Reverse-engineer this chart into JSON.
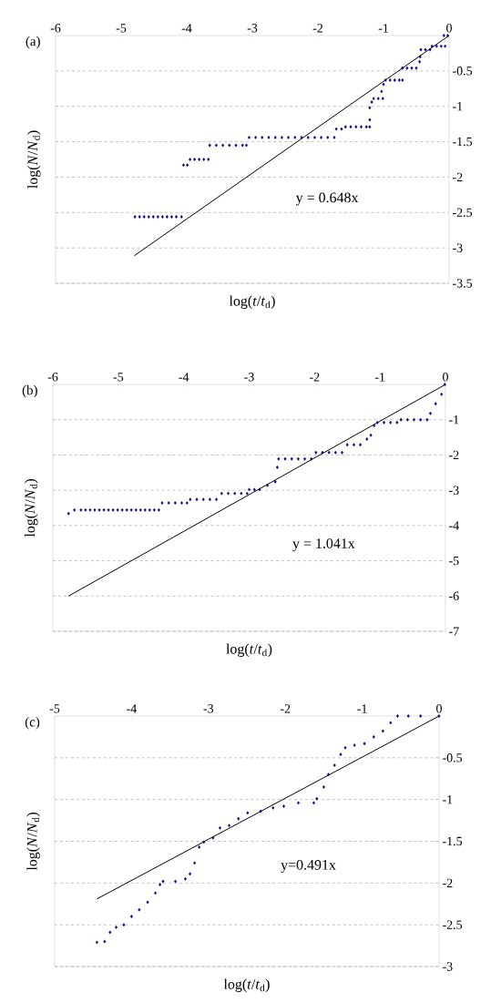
{
  "chart_data": [
    {
      "type": "scatter",
      "title": "(a)",
      "xlabel": "log(*t*/*t*$_{d}$)",
      "ylabel": "log(*N*/*N*$_{d}$)",
      "xlim": [
        -6,
        0
      ],
      "ylim": [
        -3.5,
        0
      ],
      "xticks": [
        -6,
        -5,
        -4,
        -3,
        -2,
        -1,
        0
      ],
      "yticks": [
        -3.5,
        -3,
        -2.5,
        -2,
        -1.5,
        -1,
        -0.5
      ],
      "grid": "y",
      "marker": "diamond",
      "annotations": [
        "y = 0.648x"
      ],
      "series": [
        {
          "type": "scatter",
          "color": "#000080",
          "x": [
            -4.79,
            -4.72,
            -4.65,
            -4.58,
            -4.51,
            -4.44,
            -4.37,
            -4.3,
            -4.23,
            -4.16,
            -4.08,
            -4.05,
            -3.99,
            -3.95,
            -3.88,
            -3.81,
            -3.74,
            -3.67,
            -3.65,
            -3.55,
            -3.45,
            -3.35,
            -3.25,
            -3.15,
            -3.09,
            -3.05,
            -2.95,
            -2.85,
            -2.75,
            -2.65,
            -2.55,
            -2.45,
            -2.35,
            -2.25,
            -2.15,
            -2.05,
            -1.95,
            -1.85,
            -1.75,
            -1.72,
            -1.64,
            -1.58,
            -1.5,
            -1.42,
            -1.34,
            -1.26,
            -1.21,
            -1.21,
            -1.21,
            -1.18,
            -1.15,
            -1.08,
            -1.01,
            -1.03,
            -1.0,
            -0.97,
            -0.9,
            -0.83,
            -0.76,
            -0.71,
            -0.71,
            -0.64,
            -0.57,
            -0.5,
            -0.45,
            -0.44,
            -0.43,
            -0.36,
            -0.29,
            -0.26,
            -0.19,
            -0.12,
            -0.06,
            -0.08,
            -0.02
          ],
          "values": [
            -2.56,
            -2.56,
            -2.56,
            -2.56,
            -2.56,
            -2.56,
            -2.56,
            -2.56,
            -2.56,
            -2.56,
            -2.56,
            -1.83,
            -1.83,
            -1.75,
            -1.75,
            -1.75,
            -1.75,
            -1.75,
            -1.55,
            -1.55,
            -1.55,
            -1.55,
            -1.55,
            -1.55,
            -1.55,
            -1.44,
            -1.44,
            -1.44,
            -1.44,
            -1.44,
            -1.44,
            -1.44,
            -1.44,
            -1.44,
            -1.44,
            -1.44,
            -1.44,
            -1.44,
            -1.44,
            -1.32,
            -1.32,
            -1.29,
            -1.29,
            -1.29,
            -1.29,
            -1.29,
            -1.29,
            -1.19,
            -1.02,
            -0.94,
            -0.89,
            -0.89,
            -0.89,
            -0.79,
            -0.69,
            -0.63,
            -0.63,
            -0.63,
            -0.63,
            -0.63,
            -0.46,
            -0.46,
            -0.46,
            -0.46,
            -0.37,
            -0.3,
            -0.2,
            -0.2,
            -0.2,
            -0.15,
            -0.15,
            -0.15,
            -0.15,
            0,
            0
          ]
        },
        {
          "type": "line",
          "color": "#000000",
          "marker": "none",
          "x": [
            -4.8,
            0
          ],
          "values": [
            -3.11,
            0
          ]
        }
      ]
    },
    {
      "type": "scatter",
      "title": "(b)",
      "xlabel": "log(*t*/*t*$_{d}$)",
      "ylabel": "log(*N*/*N*$_{d}$)",
      "xlim": [
        -6,
        0
      ],
      "ylim": [
        -7,
        0
      ],
      "xticks": [
        -6,
        -5,
        -4,
        -3,
        -2,
        -1,
        0
      ],
      "yticks": [
        -7,
        -6,
        -5,
        -4,
        -3,
        -2,
        -1
      ],
      "grid": "y",
      "marker": "diamond",
      "annotations": [
        "y = 1.041x"
      ],
      "series": [
        {
          "type": "scatter",
          "color": "#000080",
          "x": [
            -5.76,
            -5.67,
            -5.57,
            -5.5,
            -5.43,
            -5.36,
            -5.29,
            -5.22,
            -5.15,
            -5.08,
            -5.01,
            -4.94,
            -4.87,
            -4.8,
            -4.73,
            -4.66,
            -4.59,
            -4.52,
            -4.45,
            -4.38,
            -4.33,
            -4.23,
            -4.13,
            -4.03,
            -3.95,
            -3.9,
            -3.8,
            -3.7,
            -3.6,
            -3.5,
            -3.42,
            -3.32,
            -3.22,
            -3.12,
            -3.03,
            -3.0,
            -2.92,
            -2.84,
            -2.72,
            -2.6,
            -2.57,
            -2.55,
            -2.45,
            -2.35,
            -2.25,
            -2.15,
            -2.05,
            -1.98,
            -1.88,
            -1.78,
            -1.68,
            -1.58,
            -1.5,
            -1.4,
            -1.3,
            -1.2,
            -1.14,
            -1.09,
            -1.04,
            -0.94,
            -0.84,
            -0.74,
            -0.68,
            -0.58,
            -0.48,
            -0.38,
            -0.28,
            -0.23,
            -0.15,
            -0.06,
            -0.01
          ],
          "values": [
            -3.66,
            -3.56,
            -3.56,
            -3.56,
            -3.56,
            -3.56,
            -3.56,
            -3.56,
            -3.56,
            -3.56,
            -3.56,
            -3.56,
            -3.56,
            -3.56,
            -3.56,
            -3.56,
            -3.56,
            -3.56,
            -3.56,
            -3.56,
            -3.36,
            -3.36,
            -3.36,
            -3.36,
            -3.36,
            -3.26,
            -3.26,
            -3.26,
            -3.26,
            -3.26,
            -3.09,
            -3.09,
            -3.09,
            -3.09,
            -3.09,
            -2.98,
            -2.98,
            -2.98,
            -2.86,
            -2.76,
            -2.35,
            -2.11,
            -2.11,
            -2.11,
            -2.11,
            -2.11,
            -2.11,
            -1.93,
            -1.93,
            -1.93,
            -1.93,
            -1.93,
            -1.71,
            -1.71,
            -1.71,
            -1.55,
            -1.44,
            -1.17,
            -1.08,
            -1.08,
            -1.08,
            -1.08,
            -1.0,
            -1.0,
            -1.0,
            -1.0,
            -1.0,
            -0.82,
            -0.55,
            -0.28,
            0
          ]
        },
        {
          "type": "line",
          "color": "#000000",
          "marker": "none",
          "x": [
            -5.76,
            0
          ],
          "values": [
            -6.0,
            0
          ]
        }
      ]
    },
    {
      "type": "scatter",
      "title": "(c)",
      "xlabel": "log(*t*/*t*$_{d}$)",
      "ylabel": "log(*N*/*N*$_{d}$)",
      "xlim": [
        -5,
        0
      ],
      "ylim": [
        -3,
        0
      ],
      "xticks": [
        -5,
        -4,
        -3,
        -2,
        -1,
        0
      ],
      "yticks": [
        -3,
        -2.5,
        -2,
        -1.5,
        -1,
        -0.5
      ],
      "grid": "y",
      "marker": "diamond",
      "annotations": [
        "y=0.491x"
      ],
      "series": [
        {
          "type": "scatter",
          "color": "#000080",
          "x": [
            -4.45,
            -4.35,
            -4.28,
            -4.2,
            -4.1,
            -4.0,
            -3.9,
            -3.79,
            -3.69,
            -3.63,
            -3.59,
            -3.43,
            -3.3,
            -3.24,
            -3.18,
            -3.12,
            -3.06,
            -2.94,
            -2.85,
            -2.73,
            -2.61,
            -2.49,
            -2.32,
            -2.16,
            -2.02,
            -1.83,
            -1.63,
            -1.59,
            -1.5,
            -1.44,
            -1.36,
            -1.28,
            -1.22,
            -1.1,
            -0.97,
            -0.85,
            -0.73,
            -0.63,
            -0.54,
            -0.4,
            -0.24,
            0
          ],
          "values": [
            -2.71,
            -2.7,
            -2.59,
            -2.53,
            -2.5,
            -2.4,
            -2.32,
            -2.23,
            -2.12,
            -2.02,
            -1.98,
            -1.98,
            -1.95,
            -1.89,
            -1.76,
            -1.57,
            -1.51,
            -1.46,
            -1.34,
            -1.31,
            -1.23,
            -1.16,
            -1.14,
            -1.1,
            -1.08,
            -1.04,
            -1.04,
            -0.99,
            -0.85,
            -0.7,
            -0.59,
            -0.46,
            -0.38,
            -0.35,
            -0.33,
            -0.25,
            -0.18,
            -0.08,
            0,
            0,
            0,
            0
          ]
        },
        {
          "type": "line",
          "color": "#000000",
          "marker": "none",
          "x": [
            -4.45,
            0
          ],
          "values": [
            -2.19,
            0
          ]
        }
      ]
    }
  ]
}
